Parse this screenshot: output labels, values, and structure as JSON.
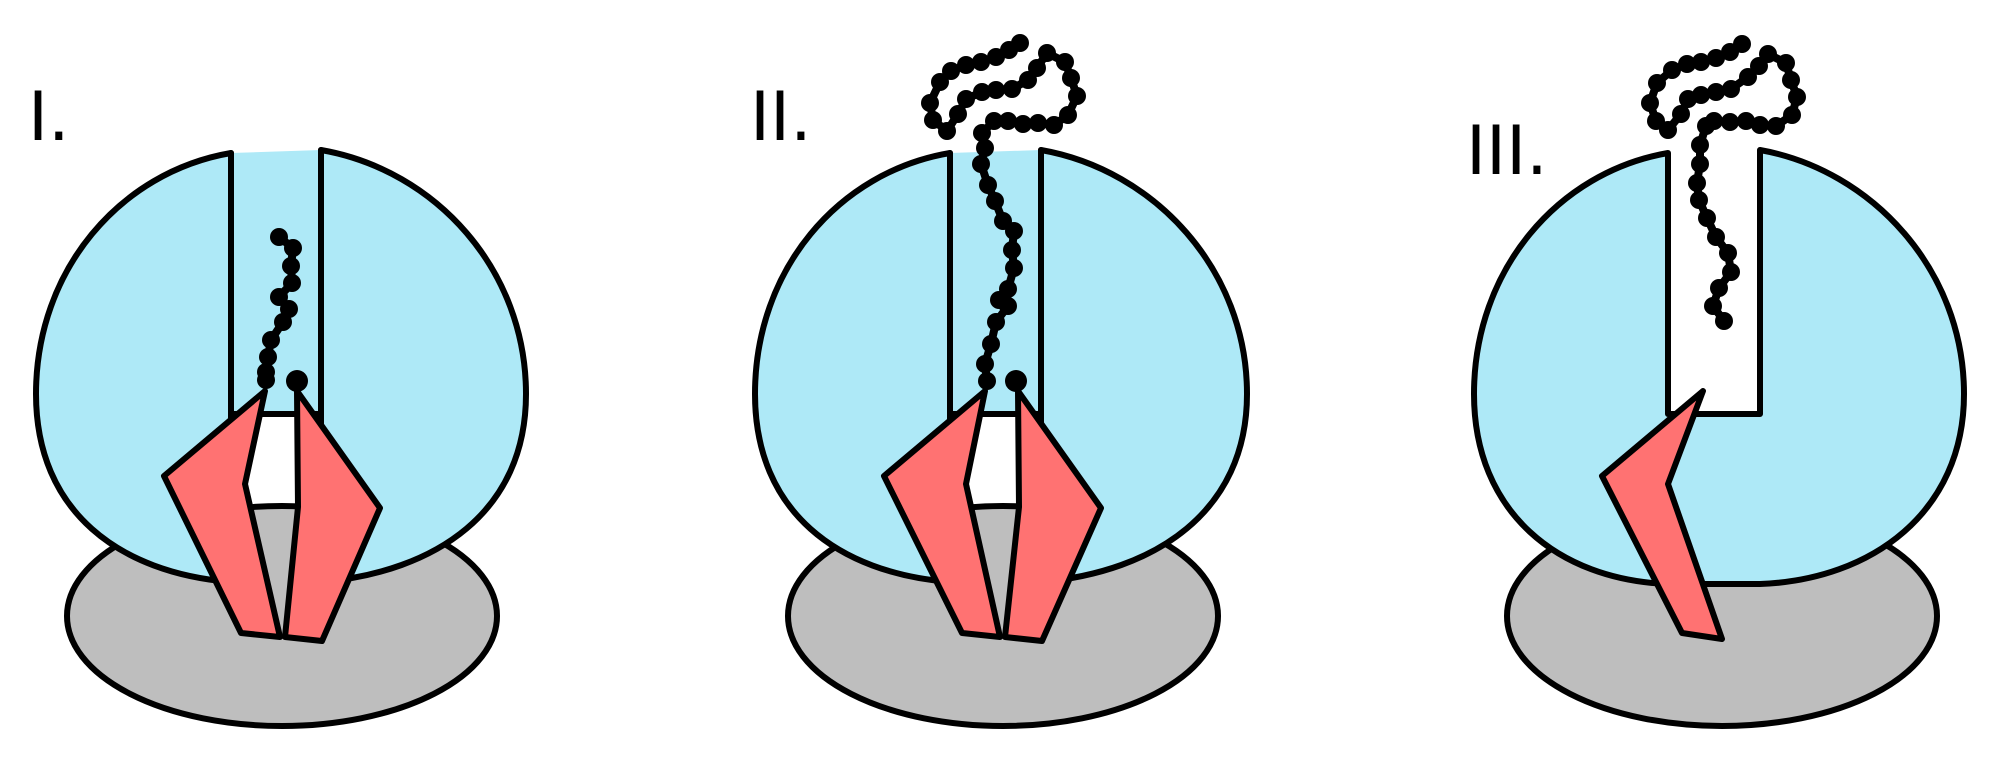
{
  "diagram": {
    "panels": [
      {
        "label": "I."
      },
      {
        "label": "II."
      },
      {
        "label": "III."
      }
    ],
    "colors": {
      "base_ellipse": "#bebebe",
      "chamber": "#aee9f7",
      "blades": "#ff7272",
      "outline": "#000000",
      "chain": "#000000",
      "background": "#ffffff"
    }
  }
}
